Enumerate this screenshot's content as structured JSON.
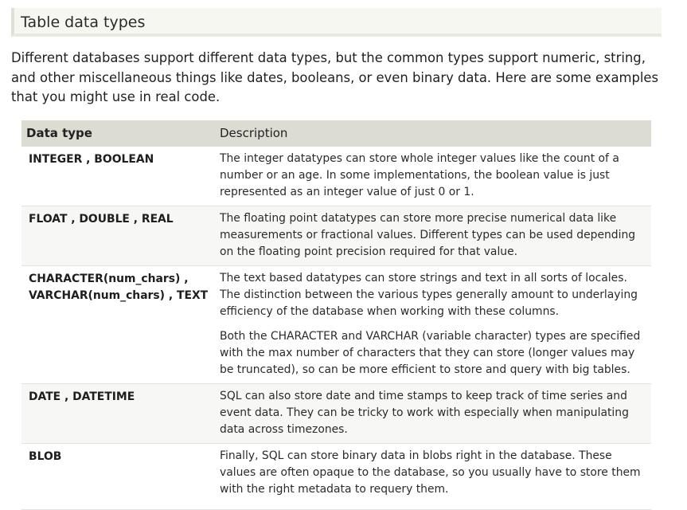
{
  "section": {
    "title": "Table data types"
  },
  "intro": "Different databases support different data types, but the common types support numeric, string, and other miscellaneous things like dates, booleans, or even binary data. Here are some examples that you might use in real code.",
  "table": {
    "headers": [
      "Data type",
      "Description"
    ],
    "rows": [
      {
        "types": "INTEGER ,  BOOLEAN",
        "desc": [
          "The integer datatypes can store whole integer values like the count of a number or an age. In some implementations, the boolean value is just represented as an integer value of just 0 or 1."
        ]
      },
      {
        "types": "FLOAT ,  DOUBLE ,  REAL",
        "desc": [
          "The floating point datatypes can store more precise numerical data like measurements or fractional values. Different types can be used depending on the floating point precision required for that value."
        ]
      },
      {
        "types_lines": [
          "CHARACTER(num_chars) ,",
          "VARCHAR(num_chars) ,  TEXT"
        ],
        "desc": [
          "The text based datatypes can store strings and text in all sorts of locales. The distinction between the various types generally amount to underlaying efficiency of the database when working with these columns.",
          "Both the CHARACTER and VARCHAR (variable character) types are specified with the max number of characters that they can store (longer values may be truncated), so can be more efficient to store and query with big tables."
        ]
      },
      {
        "types": "DATE ,  DATETIME",
        "desc": [
          "SQL can also store date and time stamps to keep track of time series and event data. They can be tricky to work with especially when manipulating data across timezones."
        ]
      },
      {
        "types": "BLOB",
        "desc": [
          "Finally, SQL can store binary data in blobs right in the database. These values are often opaque to the database, so you usually have to store them with the right metadata to requery them."
        ]
      }
    ]
  }
}
